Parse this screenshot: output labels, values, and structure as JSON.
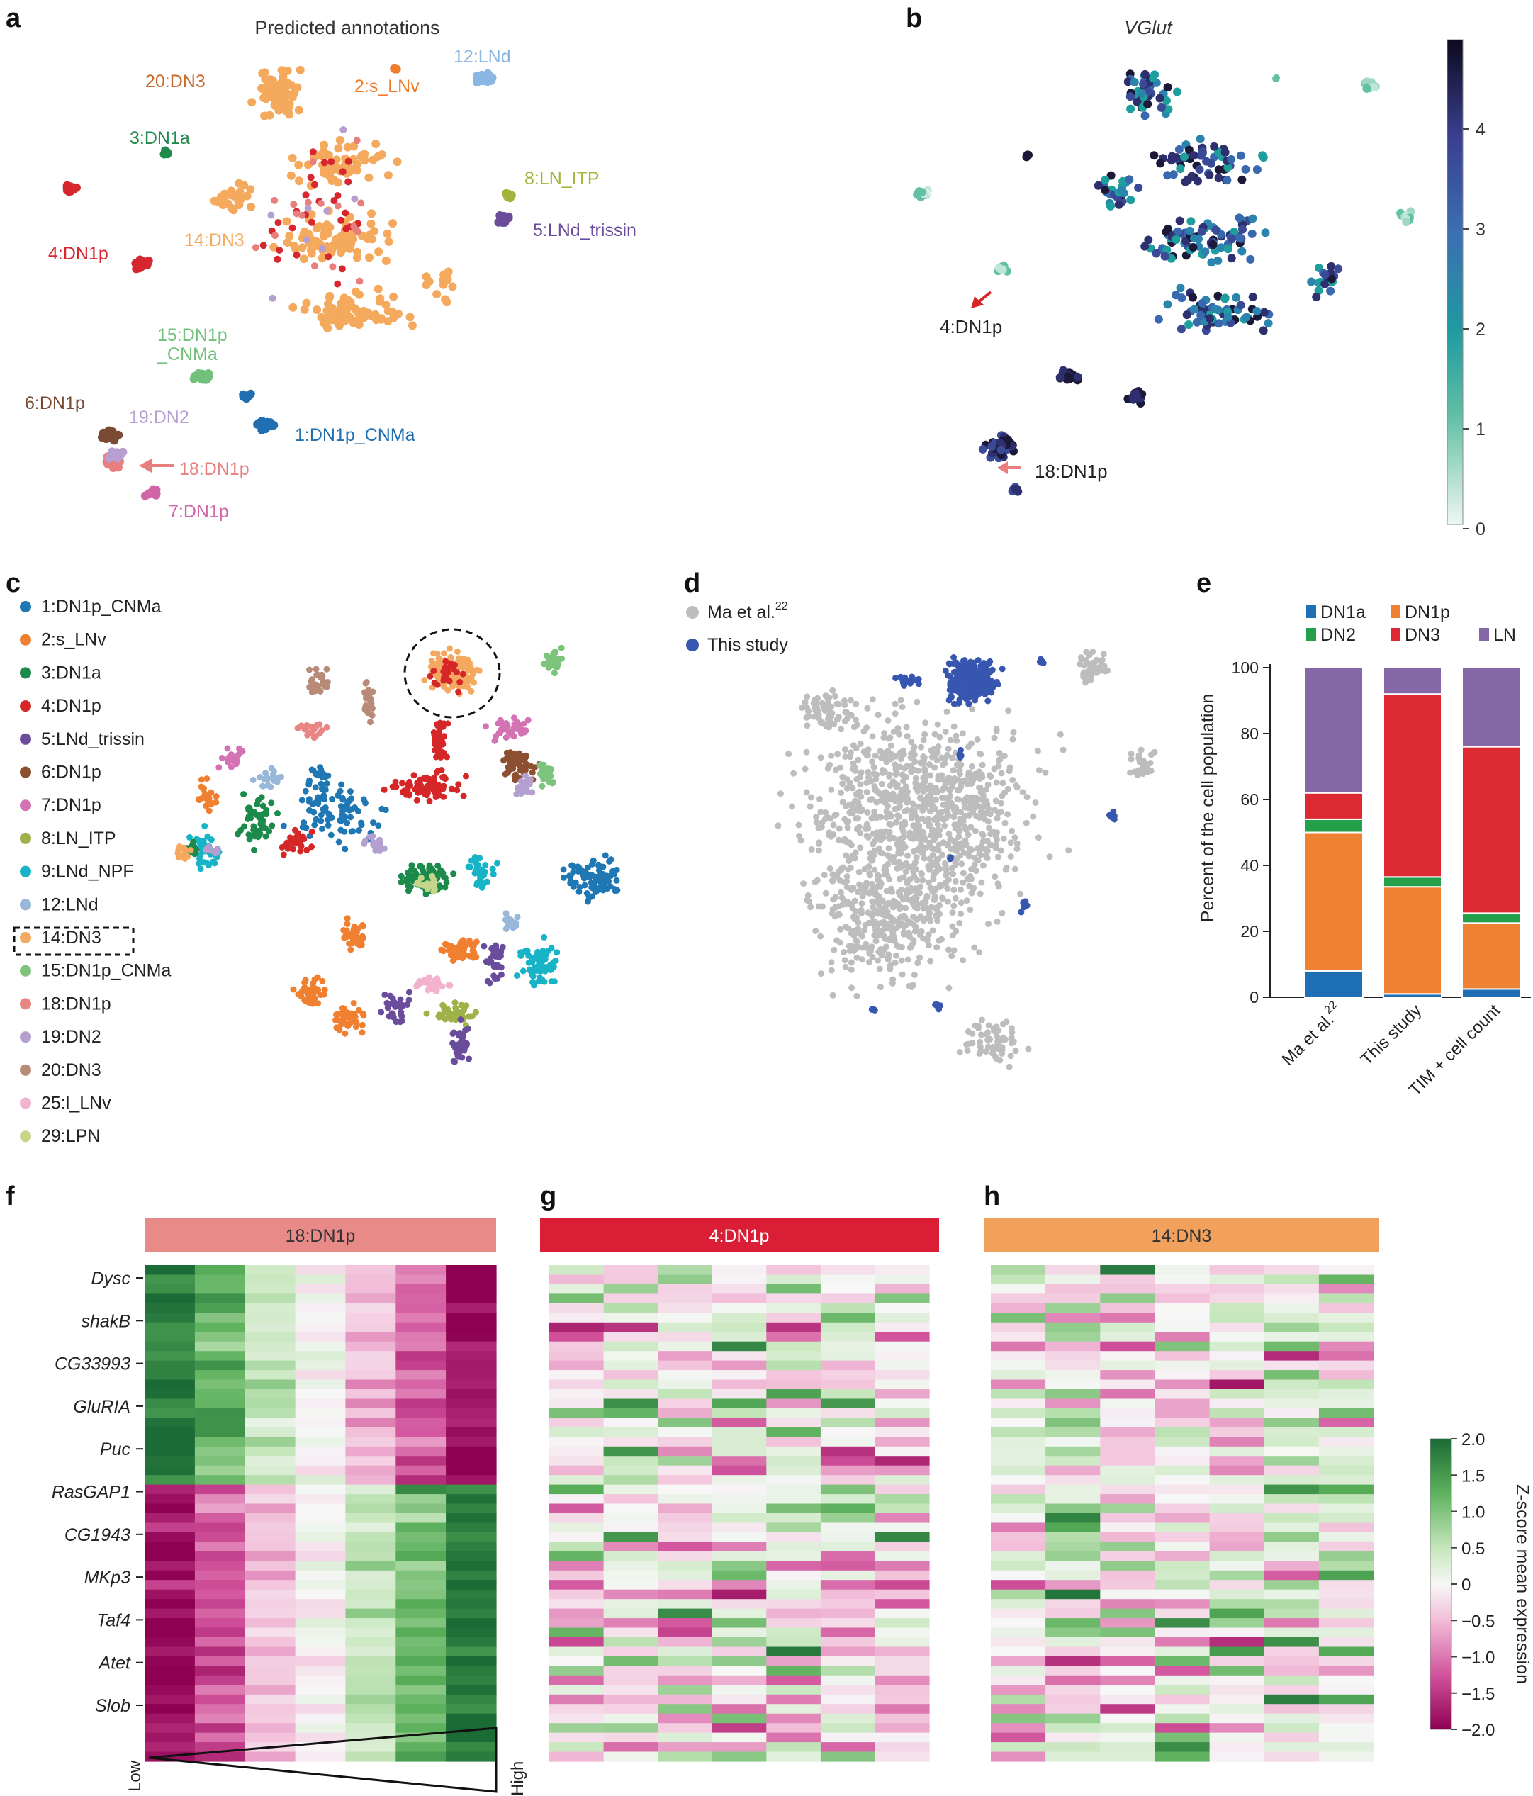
{
  "panels": {
    "a": {
      "label": "a",
      "title": "Predicted annotations",
      "clusters": [
        {
          "name": "20:DN3",
          "color": "#c8692c"
        },
        {
          "name": "2:s_LNv",
          "color": "#ef7b2b"
        },
        {
          "name": "12:LNd",
          "color": "#8ab6e3"
        },
        {
          "name": "3:DN1a",
          "color": "#1f8a4c"
        },
        {
          "name": "8:LN_ITP",
          "color": "#a4b43a"
        },
        {
          "name": "5:LNd_trissin",
          "color": "#6b4c9a"
        },
        {
          "name": "4:DN1p",
          "color": "#d6262e"
        },
        {
          "name": "14:DN3",
          "color": "#f4a95c"
        },
        {
          "name": "15:DN1p",
          "color": "#72c07a"
        },
        {
          "name": "_CNMa",
          "color": "#72c07a"
        },
        {
          "name": "6:DN1p",
          "color": "#7a4a35"
        },
        {
          "name": "19:DN2",
          "color": "#b79fd1"
        },
        {
          "name": "1:DN1p_CNMa",
          "color": "#1f6fb1"
        },
        {
          "name": "18:DN1p",
          "color": "#e97e7e"
        },
        {
          "name": "7:DN1p",
          "color": "#d065a8"
        }
      ]
    },
    "b": {
      "label": "b",
      "title": "VGlut",
      "colorbar_ticks": [
        "4",
        "3",
        "2",
        "1",
        "0"
      ],
      "annotations": [
        {
          "text": "4:DN1p"
        },
        {
          "text": "18:DN1p"
        }
      ]
    },
    "c": {
      "label": "c",
      "legend": [
        {
          "name": "1:DN1p_CNMa",
          "color": "#1f77b4"
        },
        {
          "name": "2:s_LNv",
          "color": "#f08030"
        },
        {
          "name": "3:DN1a",
          "color": "#1b8a4a"
        },
        {
          "name": "4:DN1p",
          "color": "#d62728"
        },
        {
          "name": "5:LNd_trissin",
          "color": "#6a4c9c"
        },
        {
          "name": "6:DN1p",
          "color": "#8c5030"
        },
        {
          "name": "7:DN1p",
          "color": "#d473b4"
        },
        {
          "name": "8:LN_ITP",
          "color": "#9fb24a"
        },
        {
          "name": "9:LNd_NPF",
          "color": "#17b3c7"
        },
        {
          "name": "12:LNd",
          "color": "#98b7d9"
        },
        {
          "name": "14:DN3",
          "color": "#f5a860"
        },
        {
          "name": "15:DN1p_CNMa",
          "color": "#7cc47c"
        },
        {
          "name": "18:DN1p",
          "color": "#ea8585"
        },
        {
          "name": "19:DN2",
          "color": "#b4a0cf"
        },
        {
          "name": "20:DN3",
          "color": "#b88b78"
        },
        {
          "name": "25:l_LNv",
          "color": "#f3b3cf"
        },
        {
          "name": "29:LPN",
          "color": "#c5d58a"
        }
      ]
    },
    "d": {
      "label": "d",
      "legend": [
        {
          "name": "Ma et al.",
          "superscript": "22",
          "color": "#bdbdbd"
        },
        {
          "name": "This study",
          "color": "#3656b0"
        }
      ]
    },
    "e": {
      "label": "e",
      "legend": [
        {
          "name": "DN1a",
          "color": "#1f6fb4"
        },
        {
          "name": "DN1p",
          "color": "#ef8232"
        },
        {
          "name": "DN2",
          "color": "#25a04a"
        },
        {
          "name": "DN3",
          "color": "#dd2a32"
        },
        {
          "name": "LN",
          "color": "#8566a6"
        }
      ]
    },
    "f": {
      "label": "f",
      "header": "18:DN1p",
      "header_color": "#e88a88",
      "genes": [
        "Dysc",
        "shakB",
        "CG33993",
        "GluRIA",
        "Puc",
        "RasGAP1",
        "CG1943",
        "MKp3",
        "Taf4",
        "Atet",
        "Slob"
      ],
      "gradient_low": "Low",
      "gradient_high": "High"
    },
    "g": {
      "label": "g",
      "header": "4:DN1p",
      "header_color": "#d91e36"
    },
    "h": {
      "label": "h",
      "header": "14:DN3",
      "header_color": "#f2a15c"
    },
    "zscore_colorbar": {
      "title": "Z-score mean expression",
      "ticks": [
        "2.0",
        "1.5",
        "1.0",
        "0.5",
        "0",
        "−0.5",
        "−1.0",
        "−1.5",
        "−2.0"
      ]
    }
  },
  "chart_data": {
    "type": "bar",
    "stacked": true,
    "categories": [
      "Ma et al. 22",
      "This study",
      "TIM + cell count"
    ],
    "category_labels": [
      {
        "text": "Ma et al.",
        "sup": "22"
      },
      {
        "text": "This study"
      },
      {
        "text": "TIM + cell count"
      }
    ],
    "series": [
      {
        "name": "DN1a",
        "color": "#1f6fb4",
        "values": [
          8,
          1,
          2.5
        ]
      },
      {
        "name": "DN1p",
        "color": "#ef8232",
        "values": [
          42,
          32.5,
          20
        ]
      },
      {
        "name": "DN2",
        "color": "#25a04a",
        "values": [
          4,
          3,
          3
        ]
      },
      {
        "name": "DN3",
        "color": "#dd2a32",
        "values": [
          8,
          55.5,
          50.5
        ]
      },
      {
        "name": "LN",
        "color": "#8566a6",
        "values": [
          38,
          8,
          24
        ]
      }
    ],
    "ylabel": "Percent of the cell population",
    "yticks": [
      0,
      20,
      40,
      60,
      80,
      100
    ],
    "ylim": [
      0,
      100
    ]
  }
}
